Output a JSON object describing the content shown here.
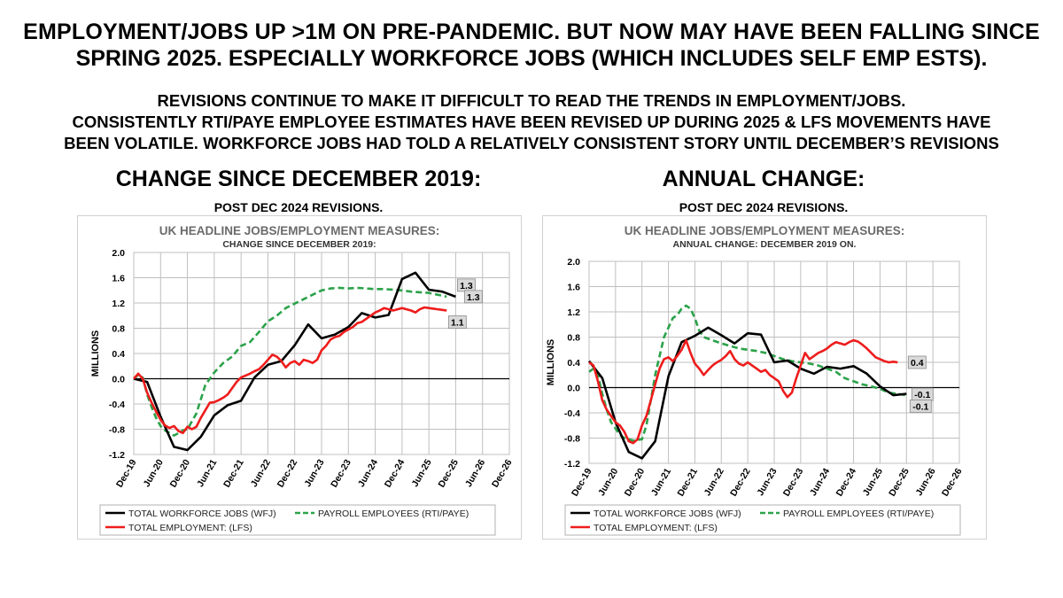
{
  "headline": {
    "line1": "EMPLOYMENT/JOBS UP >1M ON PRE-PANDEMIC. BUT NOW MAY HAVE BEEN FALLING SINCE",
    "line2": "SPRING 2025. ESPECIALLY WORKFORCE JOBS (WHICH INCLUDES SELF EMP ESTS)."
  },
  "subhead": {
    "line1": "REVISIONS CONTINUE TO MAKE IT DIFFICULT TO READ THE TRENDS IN EMPLOYMENT/JOBS.",
    "line2": "CONSISTENTLY RTI/PAYE EMPLOYEE ESTIMATES HAVE BEEN REVISED UP DURING 2025 & LFS MOVEMENTS HAVE",
    "line3": "BEEN VOLATILE. WORKFORCE JOBS HAD TOLD A RELATIVELY CONSISTENT STORY UNTIL DECEMBER’S REVISIONS"
  },
  "left_section": {
    "title": "CHANGE SINCE DECEMBER 2019:",
    "note": "POST DEC 2024 REVISIONS."
  },
  "right_section": {
    "title": "ANNUAL CHANGE:",
    "note": "POST DEC 2024 REVISIONS."
  },
  "colors": {
    "wfj": "#000000",
    "rti": "#2ca24a",
    "lfs": "#ee1c1c",
    "label_bg": "#d9d9d9",
    "grid": "#bfbfbf"
  },
  "chart_data": [
    {
      "type": "line",
      "title": "UK HEADLINE JOBS/EMPLOYMENT MEASURES:",
      "subtitle": "CHANGE SINCE DECEMBER 2019:",
      "ylabel": "MILLIONS",
      "ylim": [
        -1.2,
        2.0
      ],
      "yticks": [
        "2.0",
        "1.6",
        "1.2",
        "0.8",
        "0.4",
        "0.0",
        "-0.4",
        "-0.8",
        "-1.2"
      ],
      "ytick_values": [
        2.0,
        1.6,
        1.2,
        0.8,
        0.4,
        0.0,
        -0.4,
        -0.8,
        -1.2
      ],
      "xticks": [
        "Dec-19",
        "Jun-20",
        "Dec-20",
        "Jun-21",
        "Dec-21",
        "Jun-22",
        "Dec-22",
        "Jun-23",
        "Dec-23",
        "Jun-24",
        "Dec-24",
        "Jun-25",
        "Dec-25",
        "Jun-26",
        "Dec-26"
      ],
      "x_range_months": [
        0,
        84
      ],
      "series": [
        {
          "name": "TOTAL WORKFORCE JOBS (WFJ)",
          "key": "wfj",
          "style": "solid",
          "x": [
            0,
            3,
            6,
            9,
            12,
            15,
            18,
            21,
            24,
            27,
            30,
            33,
            36,
            39,
            42,
            45,
            48,
            51,
            54,
            57,
            60,
            63,
            66,
            69,
            72
          ],
          "y": [
            0,
            -0.05,
            -0.6,
            -1.08,
            -1.13,
            -0.92,
            -0.58,
            -0.42,
            -0.35,
            0.02,
            0.22,
            0.28,
            0.53,
            0.86,
            0.64,
            0.7,
            0.82,
            1.04,
            0.97,
            1.01,
            1.58,
            1.68,
            1.41,
            1.38,
            1.3
          ]
        },
        {
          "name": "PAYROLL EMPLOYEES (RTI/PAYE)",
          "key": "rti",
          "style": "dashed",
          "x": [
            0,
            1,
            2,
            3,
            4,
            5,
            6,
            7,
            8,
            9,
            10,
            11,
            12,
            14,
            16,
            18,
            20,
            22,
            24,
            26,
            28,
            30,
            32,
            34,
            36,
            38,
            40,
            42,
            44,
            46,
            48,
            50,
            52,
            54,
            56,
            58,
            60,
            62,
            64,
            66,
            68,
            70
          ],
          "y": [
            0,
            0.06,
            0.02,
            -0.25,
            -0.45,
            -0.62,
            -0.75,
            -0.82,
            -0.86,
            -0.9,
            -0.86,
            -0.82,
            -0.8,
            -0.55,
            -0.1,
            0.1,
            0.25,
            0.35,
            0.52,
            0.58,
            0.74,
            0.91,
            1.0,
            1.12,
            1.19,
            1.26,
            1.33,
            1.4,
            1.43,
            1.44,
            1.43,
            1.44,
            1.43,
            1.42,
            1.42,
            1.41,
            1.4,
            1.38,
            1.37,
            1.36,
            1.33,
            1.3
          ]
        },
        {
          "name": "TOTAL EMPLOYMENT: (LFS)",
          "key": "lfs",
          "style": "solid",
          "x": [
            0,
            1,
            2,
            3,
            4,
            5,
            6,
            7,
            8,
            9,
            10,
            11,
            12,
            13,
            14,
            15,
            16,
            17,
            18,
            19,
            20,
            21,
            22,
            23,
            24,
            25,
            26,
            27,
            28,
            29,
            30,
            31,
            32,
            33,
            34,
            35,
            36,
            37,
            38,
            39,
            40,
            41,
            42,
            43,
            44,
            45,
            46,
            47,
            48,
            49,
            50,
            51,
            52,
            53,
            54,
            55,
            56,
            57,
            58,
            59,
            60,
            61,
            62,
            63,
            64,
            65,
            66,
            67,
            68,
            69,
            70
          ],
          "y": [
            0,
            0.08,
            0,
            -0.22,
            -0.38,
            -0.52,
            -0.65,
            -0.74,
            -0.78,
            -0.75,
            -0.83,
            -0.86,
            -0.76,
            -0.8,
            -0.76,
            -0.62,
            -0.5,
            -0.38,
            -0.37,
            -0.34,
            -0.3,
            -0.25,
            -0.15,
            -0.05,
            0.02,
            0.05,
            0.08,
            0.12,
            0.15,
            0.22,
            0.3,
            0.38,
            0.35,
            0.28,
            0.18,
            0.25,
            0.28,
            0.22,
            0.3,
            0.28,
            0.25,
            0.3,
            0.45,
            0.52,
            0.62,
            0.66,
            0.68,
            0.74,
            0.78,
            0.82,
            0.88,
            0.9,
            0.95,
            1.0,
            1.05,
            1.08,
            1.12,
            1.1,
            1.08,
            1.1,
            1.12,
            1.1,
            1.08,
            1.05,
            1.1,
            1.13,
            1.12,
            1.11,
            1.1,
            1.09,
            1.08
          ]
        }
      ],
      "end_labels": [
        {
          "series": "wfj",
          "text": "1.3"
        },
        {
          "series": "rti",
          "text": "1.3"
        },
        {
          "series": "lfs",
          "text": "1.1"
        }
      ]
    },
    {
      "type": "line",
      "title": "UK HEADLINE JOBS/EMPLOYMENT MEASURES:",
      "subtitle": "ANNUAL CHANGE: DECEMBER 2019 ON.",
      "ylabel": "MILLIONS",
      "ylim": [
        -1.2,
        2.0
      ],
      "yticks": [
        "2.0",
        "1.6",
        "1.2",
        "0.8",
        "0.4",
        "0.0",
        "-0.4",
        "-0.8",
        "-1.2"
      ],
      "ytick_values": [
        2.0,
        1.6,
        1.2,
        0.8,
        0.4,
        0.0,
        -0.4,
        -0.8,
        -1.2
      ],
      "xticks": [
        "Dec-19",
        "Jun-20",
        "Dec-20",
        "Jun-21",
        "Dec-21",
        "Jun-22",
        "Dec-22",
        "Jun-23",
        "Dec-23",
        "Jun-24",
        "Dec-24",
        "Jun-25",
        "Dec-25",
        "Jun-26",
        "Dec-26"
      ],
      "x_range_months": [
        0,
        84
      ],
      "series": [
        {
          "name": "TOTAL WORKFORCE JOBS (WFJ)",
          "key": "wfj",
          "style": "solid",
          "x": [
            0,
            3,
            6,
            9,
            12,
            15,
            18,
            21,
            24,
            27,
            30,
            33,
            36,
            39,
            42,
            45,
            48,
            51,
            54,
            57,
            60,
            63,
            66,
            69,
            72
          ],
          "y": [
            0.42,
            0.15,
            -0.55,
            -1.02,
            -1.12,
            -0.85,
            0.18,
            0.72,
            0.82,
            0.95,
            0.83,
            0.7,
            0.86,
            0.84,
            0.4,
            0.43,
            0.3,
            0.22,
            0.33,
            0.3,
            0.34,
            0.22,
            0.02,
            -0.12,
            -0.1
          ]
        },
        {
          "name": "PAYROLL EMPLOYEES (RTI/PAYE)",
          "key": "rti",
          "style": "dashed",
          "x": [
            0,
            1,
            2,
            3,
            4,
            5,
            6,
            7,
            8,
            9,
            10,
            11,
            12,
            13,
            14,
            15,
            16,
            17,
            18,
            19,
            20,
            21,
            22,
            23,
            24,
            25,
            26,
            28,
            30,
            32,
            34,
            36,
            38,
            40,
            42,
            44,
            46,
            48,
            50,
            52,
            54,
            56,
            58,
            60,
            62,
            64,
            66,
            68,
            70,
            72
          ],
          "y": [
            0.25,
            0.3,
            0.2,
            -0.1,
            -0.35,
            -0.55,
            -0.65,
            -0.75,
            -0.8,
            -0.82,
            -0.84,
            -0.83,
            -0.82,
            -0.6,
            -0.2,
            0.2,
            0.5,
            0.8,
            0.95,
            1.1,
            1.15,
            1.25,
            1.3,
            1.25,
            1.1,
            0.9,
            0.8,
            0.75,
            0.7,
            0.66,
            0.62,
            0.6,
            0.58,
            0.55,
            0.5,
            0.45,
            0.42,
            0.4,
            0.38,
            0.35,
            0.3,
            0.25,
            0.15,
            0.1,
            0.05,
            0.02,
            -0.02,
            -0.08,
            -0.1,
            -0.12
          ]
        },
        {
          "name": "TOTAL EMPLOYMENT: (LFS)",
          "key": "lfs",
          "style": "solid",
          "x": [
            0,
            1,
            2,
            3,
            4,
            5,
            6,
            7,
            8,
            9,
            10,
            11,
            12,
            13,
            14,
            15,
            16,
            17,
            18,
            19,
            20,
            21,
            22,
            23,
            24,
            25,
            26,
            27,
            28,
            29,
            30,
            31,
            32,
            33,
            34,
            35,
            36,
            37,
            38,
            39,
            40,
            41,
            42,
            43,
            44,
            45,
            46,
            47,
            48,
            49,
            50,
            51,
            52,
            53,
            54,
            55,
            56,
            57,
            58,
            59,
            60,
            61,
            62,
            63,
            64,
            65,
            66,
            67,
            68,
            69,
            70
          ],
          "y": [
            0.4,
            0.35,
            0.1,
            -0.2,
            -0.35,
            -0.45,
            -0.55,
            -0.6,
            -0.7,
            -0.85,
            -0.88,
            -0.82,
            -0.6,
            -0.45,
            -0.2,
            0.05,
            0.3,
            0.45,
            0.48,
            0.42,
            0.5,
            0.6,
            0.75,
            0.55,
            0.38,
            0.3,
            0.2,
            0.28,
            0.35,
            0.4,
            0.44,
            0.5,
            0.58,
            0.45,
            0.38,
            0.35,
            0.4,
            0.35,
            0.3,
            0.25,
            0.28,
            0.2,
            0.15,
            0.1,
            -0.05,
            -0.15,
            -0.08,
            0.15,
            0.35,
            0.55,
            0.45,
            0.5,
            0.55,
            0.58,
            0.62,
            0.68,
            0.72,
            0.7,
            0.68,
            0.72,
            0.75,
            0.73,
            0.68,
            0.62,
            0.55,
            0.48,
            0.45,
            0.42,
            0.4,
            0.41,
            0.4
          ]
        }
      ],
      "end_labels": [
        {
          "series": "lfs",
          "text": "0.4"
        },
        {
          "series": "rti",
          "text": "-0.1"
        },
        {
          "series": "wfj",
          "text": "-0.1"
        }
      ]
    }
  ]
}
